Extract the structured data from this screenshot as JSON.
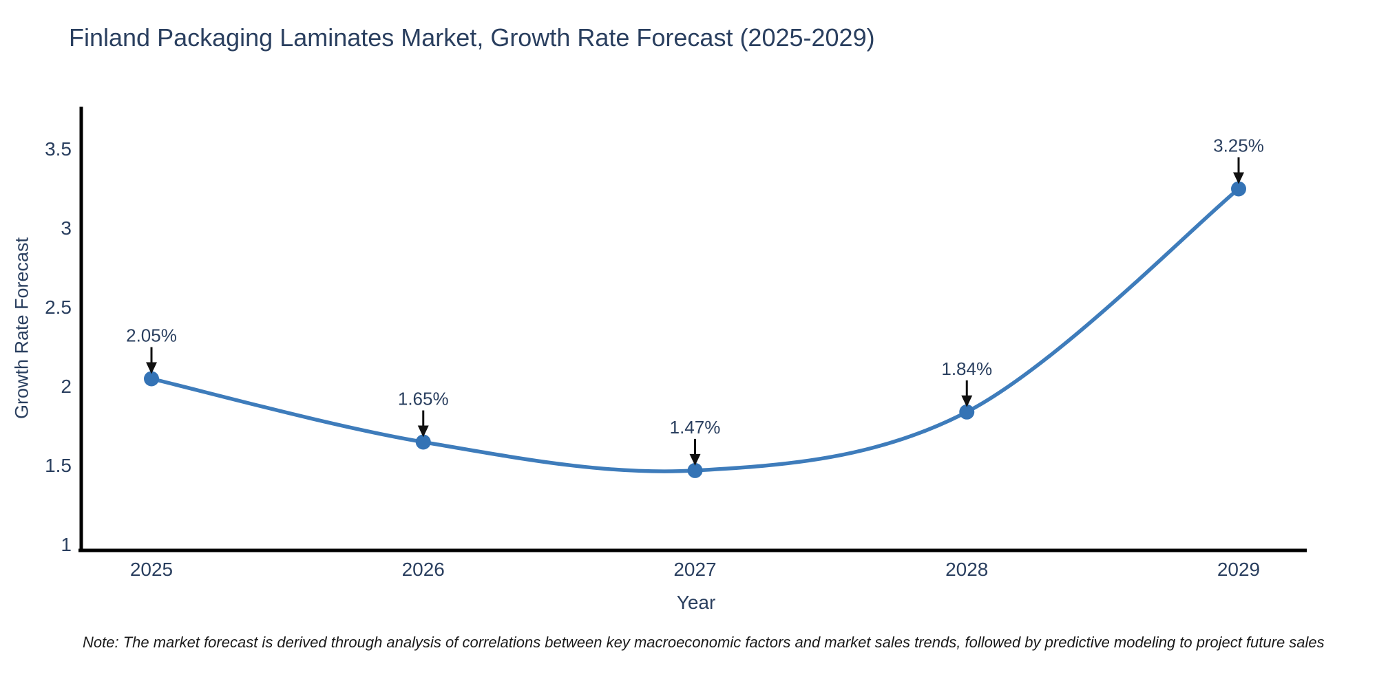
{
  "note": "Note: The market forecast is derived through analysis of correlations between key macroeconomic factors and market sales trends, followed by predictive modeling to project future sales",
  "chart_data": {
    "type": "line",
    "title": "Finland Packaging Laminates Market, Growth Rate Forecast (2025-2029)",
    "xlabel": "Year",
    "ylabel": "Growth Rate Forecast",
    "categories": [
      "2025",
      "2026",
      "2027",
      "2028",
      "2029"
    ],
    "series": [
      {
        "name": "Growth Rate Forecast",
        "values": [
          2.05,
          1.65,
          1.47,
          1.84,
          3.25
        ]
      }
    ],
    "point_labels": [
      "2.05%",
      "1.65%",
      "1.47%",
      "1.84%",
      "3.25%"
    ],
    "ylim": [
      1,
      3.5
    ],
    "yticks": [
      1,
      1.5,
      2,
      2.5,
      3,
      3.5
    ],
    "grid": false,
    "legend": "none",
    "line_shape": "spline",
    "colors": {
      "line": "#3e7cbb",
      "marker": "#3473b5",
      "axis": "#000000",
      "text": "#2a3f5f",
      "arrow": "#111111"
    }
  }
}
